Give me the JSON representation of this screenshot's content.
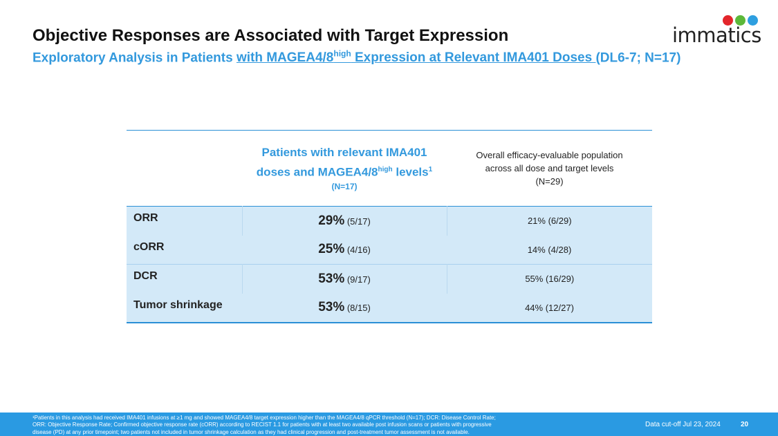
{
  "title": "Objective Responses are Associated with Target Expression",
  "subtitle": {
    "prefix": "Exploratory Analysis in Patients ",
    "link_part1": "with MAGEA4/8",
    "sup": "high",
    "link_part2": " Expression at Relevant IMA401 Doses ",
    "suffix": "(DL6-7; N=17)"
  },
  "logo": {
    "text": "immatics",
    "colors": [
      "#e3262b",
      "#5cb83a",
      "#2e9fe0"
    ]
  },
  "table": {
    "header_col2": {
      "line1": "Patients with relevant IMA401",
      "line2a": "doses and MAGEA4/8",
      "sup": "high",
      "line2b": " levels",
      "sup2": "1",
      "n": "(N=17)"
    },
    "header_col3": {
      "line1": "Overall efficacy-evaluable population",
      "line2": "across all dose and target levels",
      "n": "(N=29)"
    },
    "rows": [
      {
        "label": "ORR",
        "main_pct": "29%",
        "main_frac": "(5/17)",
        "overall": "21% (6/29)"
      },
      {
        "label": "cORR",
        "main_pct": "25%",
        "main_frac": "(4/16)",
        "overall": "14% (4/28)"
      },
      {
        "label": "DCR",
        "main_pct": "53%",
        "main_frac": "(9/17)",
        "overall": "55% (16/29)"
      },
      {
        "label": "Tumor shrinkage",
        "main_pct": "53%",
        "main_frac": "(8/15)",
        "overall": "44% (12/27)"
      }
    ]
  },
  "footer": {
    "footnote1": "¹Patients in this analysis had received IMA401 infusions at ≥1 mg and showed MAGEA4/8 target expression higher than the MAGEA4/8 qPCR threshold (N=17); DCR: Disease Control Rate;",
    "footnote2": "ORR: Objective Response Rate; Confirmed objective response rate (cORR) according to RECIST 1.1 for patients with at least two available post infusion scans or patients with progressive",
    "footnote3": "disease (PD) at any prior timepoint; two patients not included in tumor shrinkage calculation as they had clinical progression and post-treatment tumor assessment is not available.",
    "cutoff": "Data cut-off Jul 23, 2024",
    "page": "20"
  }
}
